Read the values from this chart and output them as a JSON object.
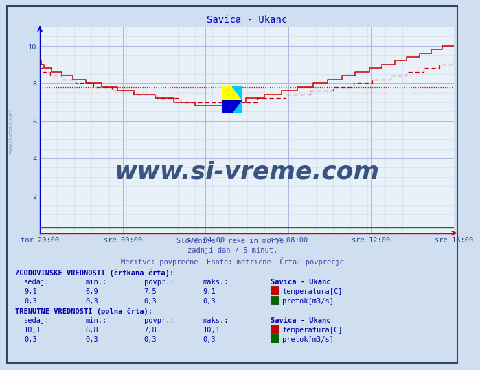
{
  "title": "Savica - Ukanc",
  "title_color": "#0000cc",
  "bg_color": "#d0dff0",
  "plot_bg_color": "#e8f0f8",
  "xlabel_ticks": [
    "tor 20:00",
    "sre 00:00",
    "sre 04:00",
    "sre 08:00",
    "sre 12:00",
    "sre 16:00"
  ],
  "ylim": [
    0,
    10.5
  ],
  "yticks": [
    2,
    4,
    6,
    8,
    10
  ],
  "temp_solid_color": "#cc0000",
  "temp_dashed_color": "#cc0000",
  "flow_color": "#008800",
  "avg_solid": 7.8,
  "avg_dashed": 7.5,
  "watermark_text": "www.si-vreme.com",
  "watermark_color": "#1a3a6b",
  "footer_line1": "Slovenija / reke in morje.",
  "footer_line2": "zadnji dan / 5 minut.",
  "footer_line3": "Meritve: povprečne  Enote: metrične  Črta: povprečje",
  "footer_color": "#4444aa",
  "table_color": "#0000aa",
  "hist_label": "ZGODOVINSKE VREDNOSTI (črtkana črta):",
  "curr_label": "TRENUTNE VREDNOSTI (polna črta):",
  "col_headers": [
    "sedaj:",
    "min.:",
    "povpr.:",
    "maks.:"
  ],
  "hist_temp": [
    9.1,
    6.9,
    7.5,
    9.1
  ],
  "hist_flow": [
    0.3,
    0.3,
    0.3,
    0.3
  ],
  "curr_temp": [
    10.1,
    6.8,
    7.8,
    10.1
  ],
  "curr_flow": [
    0.3,
    0.3,
    0.3,
    0.3
  ],
  "station_name": "Savica - Ukanc",
  "temp_label": "temperatura[C]",
  "flow_label": "pretok[m3/s]"
}
